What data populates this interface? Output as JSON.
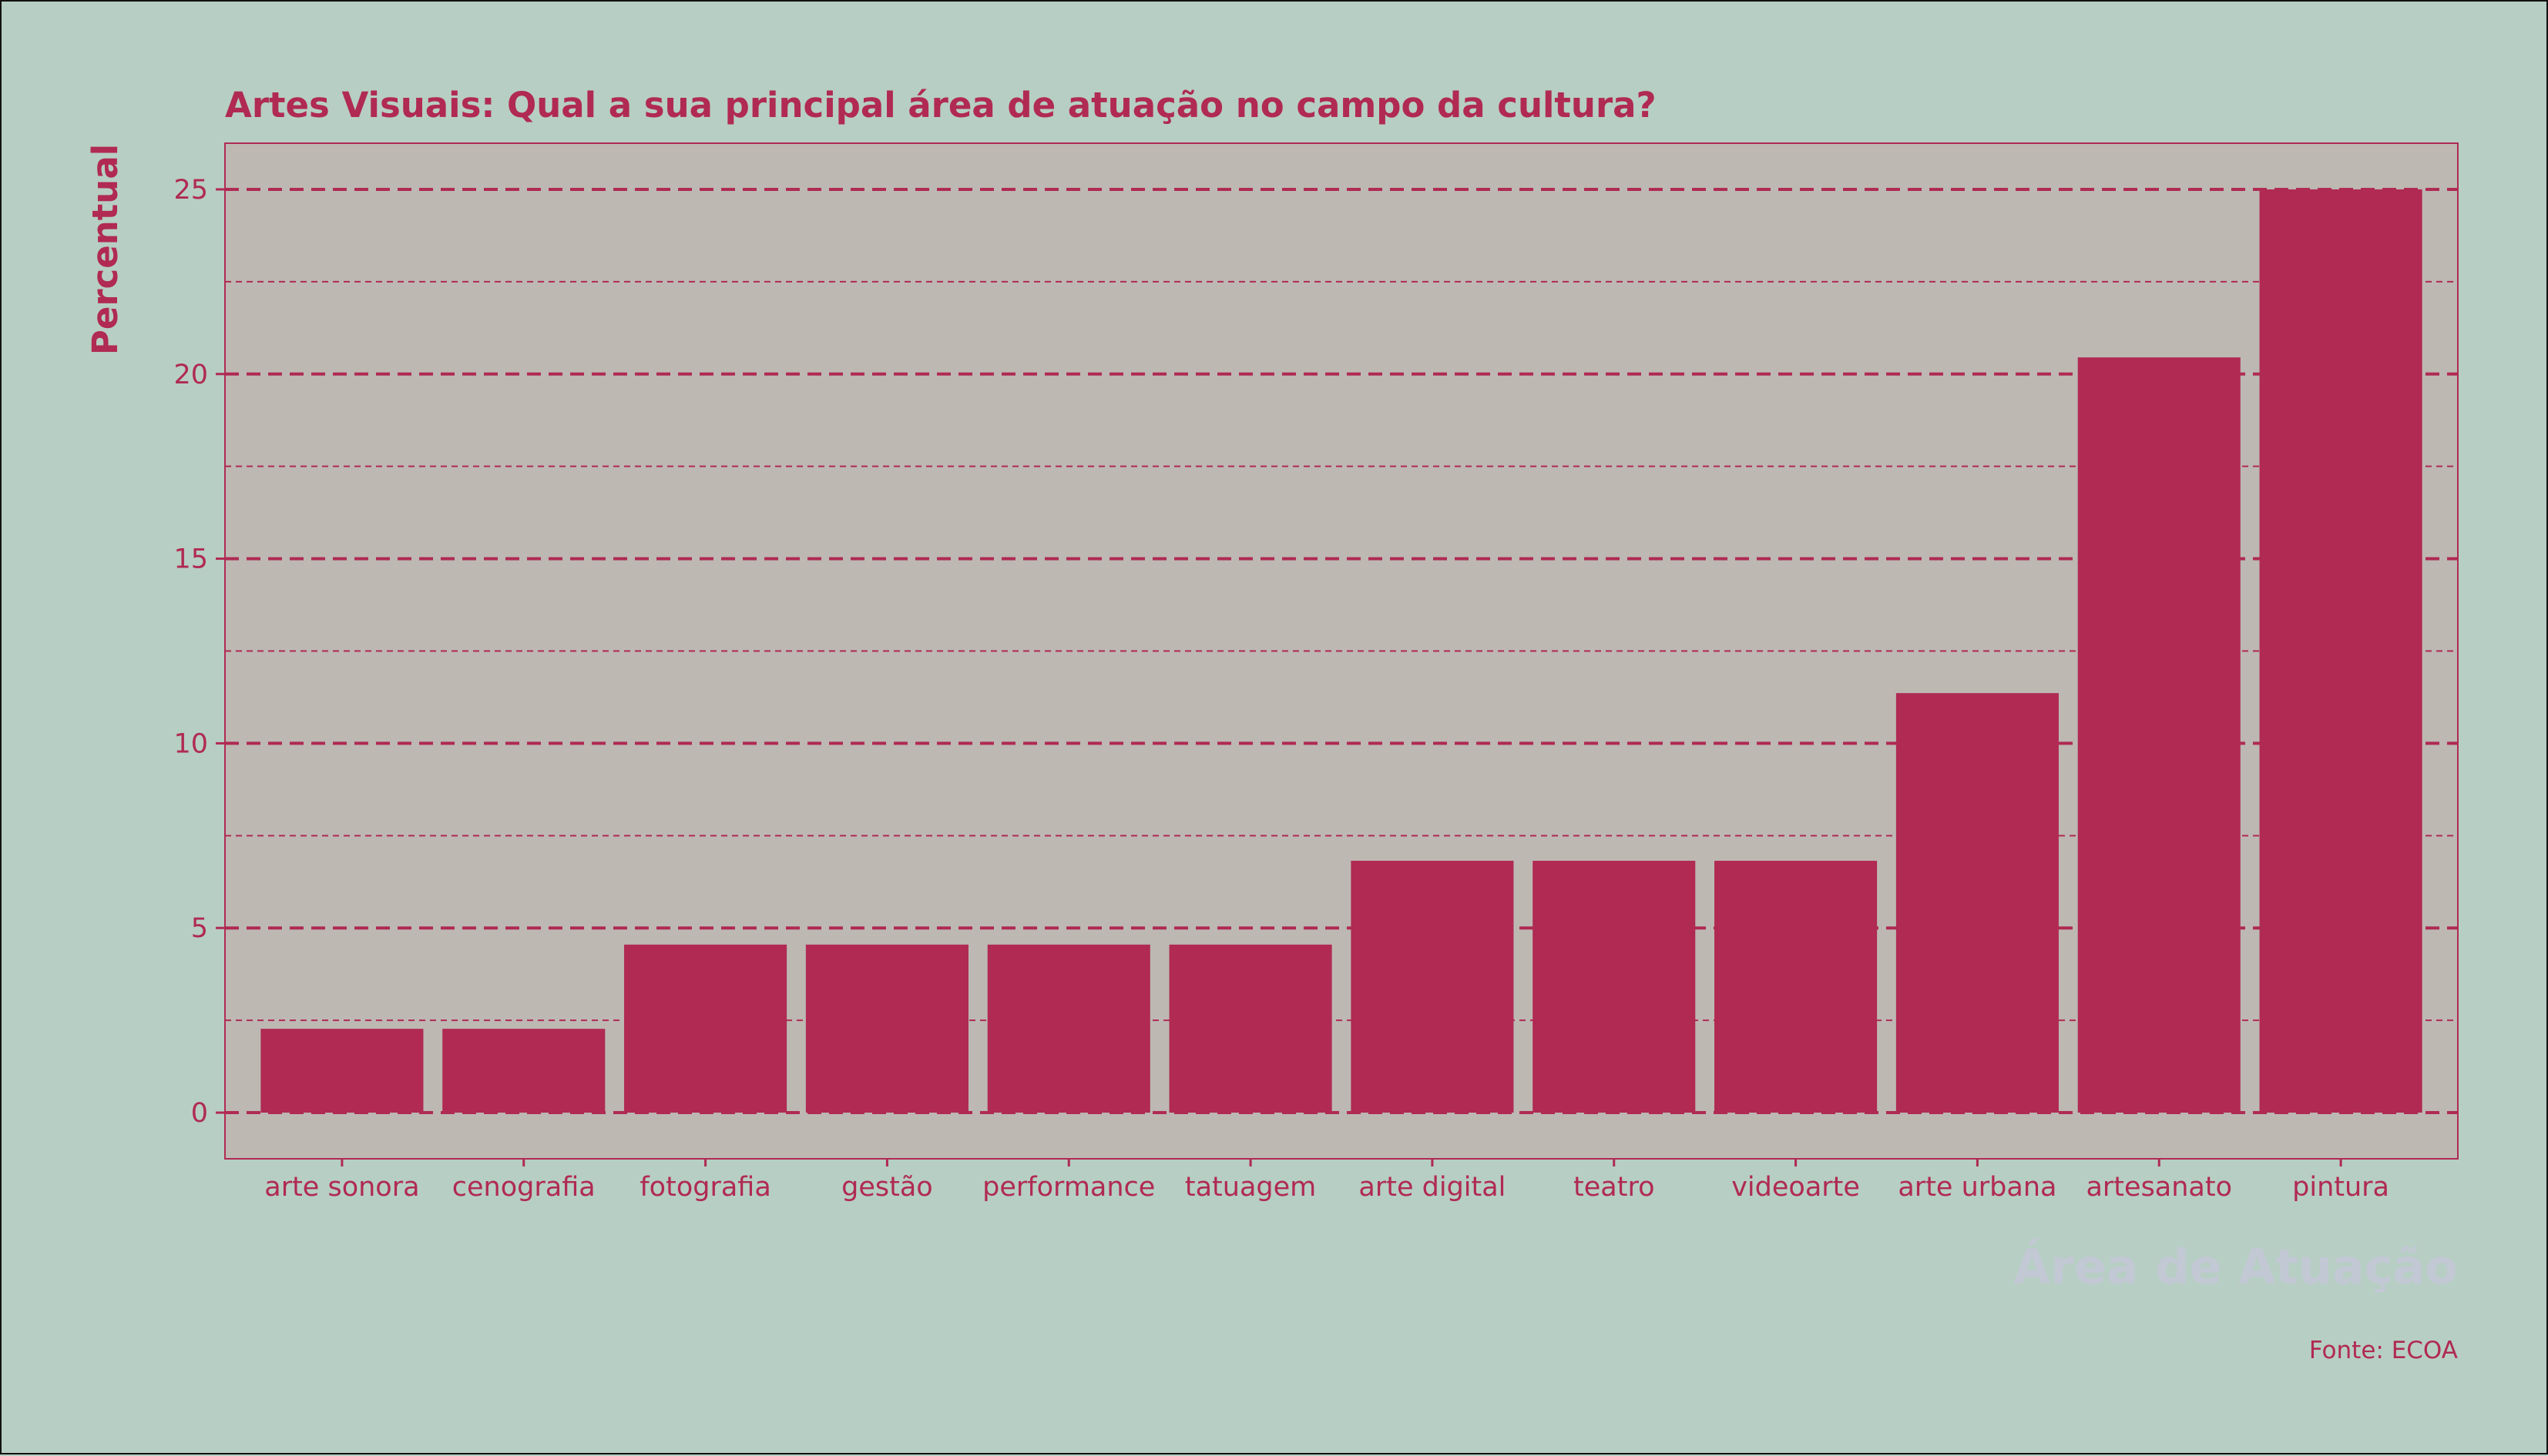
{
  "chart_data": {
    "type": "bar",
    "title": "Artes Visuais: Qual a sua principal área de atuação no campo da cultura?",
    "xlabel": "Área de Atuação",
    "ylabel": "Percentual",
    "source": "Fonte: ECOA",
    "categories": [
      "arte sonora",
      "cenografia",
      "fotografia",
      "gestão",
      "performance",
      "tatuagem",
      "arte digital",
      "teatro",
      "videoarte",
      "arte urbana",
      "artesanato",
      "pintura"
    ],
    "values": [
      2.27,
      2.27,
      4.55,
      4.55,
      4.55,
      4.55,
      6.82,
      6.82,
      6.82,
      11.36,
      20.45,
      25.0
    ],
    "ylim": [
      -1.25,
      26.25
    ],
    "yticks": [
      0,
      5,
      10,
      15,
      20,
      25
    ],
    "grid": true,
    "legend": "none"
  },
  "colors": {
    "background": "#b7cec4",
    "panel": "#bdb8b2",
    "bar": "#b02a53",
    "text": "#b02a53",
    "xlabel": "#c2c8d4"
  }
}
